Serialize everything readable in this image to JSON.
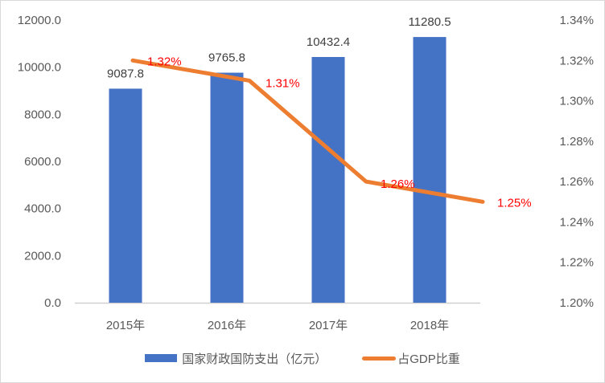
{
  "chart_data": {
    "type": "bar+line",
    "title": "",
    "categories": [
      "2015年",
      "2016年",
      "2017年",
      "2018年"
    ],
    "series": [
      {
        "name": "国家财政国防支出（亿元）",
        "type": "bar",
        "axis": "left",
        "color": "#4472c4",
        "values": [
          9087.8,
          9765.8,
          10432.4,
          11280.5
        ],
        "labels": [
          "9087.8",
          "9765.8",
          "10432.4",
          "11280.5"
        ]
      },
      {
        "name": "占GDP比重",
        "type": "line",
        "axis": "right",
        "color": "#ed7d31",
        "values": [
          1.32,
          1.31,
          1.26,
          1.25
        ],
        "labels": [
          "1.32%",
          "1.31%",
          "1.26%",
          "1.25%"
        ],
        "label_color": "#ff0000"
      }
    ],
    "left_axis": {
      "ylim": [
        0,
        12000
      ],
      "ticks": [
        "0.0",
        "2000.0",
        "4000.0",
        "6000.0",
        "8000.0",
        "10000.0",
        "12000.0"
      ]
    },
    "right_axis": {
      "ylim": [
        1.2,
        1.34
      ],
      "ticks": [
        "1.20%",
        "1.22%",
        "1.24%",
        "1.26%",
        "1.28%",
        "1.30%",
        "1.32%",
        "1.34%"
      ]
    },
    "grid": false,
    "legend_position": "bottom",
    "xlabel": "",
    "ylabel": ""
  },
  "legend": {
    "bar_label": "国家财政国防支出（亿元）",
    "line_label": "占GDP比重"
  }
}
